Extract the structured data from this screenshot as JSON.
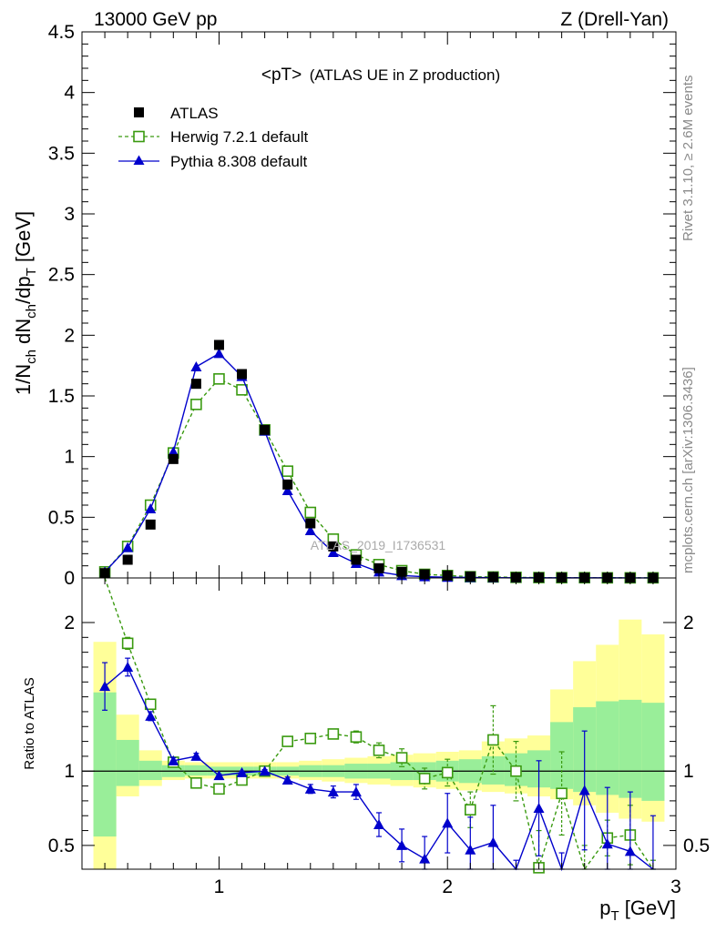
{
  "header": {
    "left": "13000 GeV pp",
    "right": "Z (Drell-Yan)"
  },
  "side_text": {
    "top": "Rivet 3.1.10, ≥ 2.6M events",
    "bottom": "mcplots.cern.ch [arXiv:1306.3436]"
  },
  "chart_data": [
    {
      "type": "line",
      "title": "<pT>",
      "subtitle": "(ATLAS UE in Z production)",
      "watermark": "ATLAS_2019_I1736531",
      "ylabel_parts": [
        "1/N",
        "ch",
        " dN",
        "ch",
        "/dp",
        "T",
        " [GeV]"
      ],
      "xlim": [
        0.4,
        3.0
      ],
      "ylim": [
        0,
        4.5
      ],
      "yticks": [
        "0",
        "0.5",
        "1",
        "1.5",
        "2",
        "2.5",
        "3",
        "3.5",
        "4",
        "4.5"
      ],
      "x": [
        0.5,
        0.6,
        0.7,
        0.8,
        0.9,
        1.0,
        1.1,
        1.2,
        1.3,
        1.4,
        1.5,
        1.6,
        1.7,
        1.8,
        1.9,
        2.0,
        2.1,
        2.2,
        2.3,
        2.4,
        2.5,
        2.6,
        2.7,
        2.8,
        2.9
      ],
      "series": [
        {
          "name": "ATLAS",
          "color": "#000000",
          "marker": "filled-square",
          "values": [
            0.04,
            0.15,
            0.44,
            0.98,
            1.6,
            1.92,
            1.68,
            1.22,
            0.77,
            0.45,
            0.26,
            0.15,
            0.08,
            0.05,
            0.03,
            0.02,
            0.012,
            0.008,
            0.005,
            0.004,
            0.003,
            0.002,
            0.002,
            0.001,
            0.001
          ]
        },
        {
          "name": "Herwig 7.2.1 default",
          "color": "#3a9a10",
          "marker": "open-square",
          "line": "dashed",
          "values": [
            0.05,
            0.26,
            0.6,
            1.03,
            1.43,
            1.64,
            1.55,
            1.22,
            0.88,
            0.54,
            0.32,
            0.19,
            0.11,
            0.06,
            0.03,
            0.02,
            0.01,
            0.008,
            0.005,
            0.003,
            0.002,
            0.002,
            0.001,
            0.001,
            0.001
          ]
        },
        {
          "name": "Pythia 8.308 default",
          "color": "#0000cc",
          "marker": "filled-triangle",
          "line": "solid",
          "values": [
            0.05,
            0.25,
            0.57,
            1.04,
            1.74,
            1.85,
            1.66,
            1.21,
            0.72,
            0.39,
            0.21,
            0.12,
            0.05,
            0.02,
            0.01,
            0.006,
            0.004,
            0.002,
            0.001,
            0.001,
            0.001,
            0.001,
            0.001,
            0.0005,
            0.0005
          ]
        }
      ]
    },
    {
      "type": "line",
      "ylabel": "Ratio to ATLAS",
      "xlabel_parts": [
        "p",
        "T",
        " [GeV]"
      ],
      "xlim": [
        0.4,
        3.0
      ],
      "ylim": [
        0.34,
        2.3
      ],
      "xticks": [
        "1",
        "2",
        "3"
      ],
      "yticks": [
        "0.5",
        "1",
        "2"
      ],
      "reference_line": 1,
      "x": [
        0.5,
        0.6,
        0.7,
        0.8,
        0.9,
        1.0,
        1.1,
        1.2,
        1.3,
        1.4,
        1.5,
        1.6,
        1.7,
        1.8,
        1.9,
        2.0,
        2.1,
        2.2,
        2.3,
        2.4,
        2.5,
        2.6,
        2.7,
        2.8,
        2.9
      ],
      "bands": [
        {
          "color": "#ffff99",
          "lower": [
            0.3,
            0.83,
            0.9,
            0.94,
            0.95,
            0.95,
            0.95,
            0.95,
            0.95,
            0.94,
            0.93,
            0.92,
            0.91,
            0.9,
            0.89,
            0.88,
            0.87,
            0.86,
            0.85,
            0.83,
            0.81,
            0.77,
            0.72,
            0.68,
            0.66
          ],
          "upper": [
            1.87,
            1.38,
            1.14,
            1.07,
            1.06,
            1.06,
            1.06,
            1.06,
            1.06,
            1.07,
            1.08,
            1.09,
            1.1,
            1.11,
            1.12,
            1.13,
            1.14,
            1.2,
            1.22,
            1.24,
            1.55,
            1.74,
            1.85,
            2.02,
            1.92
          ]
        },
        {
          "color": "#99ee99",
          "lower": [
            0.56,
            0.9,
            0.94,
            0.96,
            0.97,
            0.97,
            0.97,
            0.97,
            0.97,
            0.96,
            0.96,
            0.95,
            0.95,
            0.94,
            0.94,
            0.93,
            0.92,
            0.91,
            0.9,
            0.89,
            0.88,
            0.86,
            0.84,
            0.82,
            0.8
          ],
          "upper": [
            1.53,
            1.21,
            1.07,
            1.04,
            1.04,
            1.03,
            1.03,
            1.03,
            1.03,
            1.04,
            1.04,
            1.05,
            1.05,
            1.06,
            1.06,
            1.07,
            1.08,
            1.1,
            1.12,
            1.14,
            1.33,
            1.43,
            1.47,
            1.48,
            1.46
          ]
        }
      ],
      "series": [
        {
          "name": "Herwig 7.2.1 default",
          "color": "#3a9a10",
          "marker": "open-square",
          "line": "dashed",
          "values": [
            2.5,
            1.86,
            1.45,
            1.06,
            0.92,
            0.88,
            0.94,
            1.0,
            1.2,
            1.22,
            1.25,
            1.23,
            1.14,
            1.09,
            0.95,
            0.99,
            0.74,
            1.21,
            1.0,
            0.35,
            0.85,
            0.1,
            0.55,
            0.57,
            0.1
          ],
          "err": [
            0,
            0.04,
            0.03,
            0.02,
            0.02,
            0.01,
            0.01,
            0.01,
            0.02,
            0.02,
            0.03,
            0.04,
            0.05,
            0.06,
            0.07,
            0.09,
            0.12,
            0.23,
            0.2,
            0.25,
            0.28,
            0.4,
            0.12,
            0.2,
            0.3
          ]
        },
        {
          "name": "Pythia 8.308 default",
          "color": "#0000cc",
          "marker": "filled-triangle",
          "line": "solid",
          "values": [
            1.57,
            1.7,
            1.37,
            1.07,
            1.1,
            0.97,
            0.99,
            1.0,
            0.94,
            0.88,
            0.86,
            0.86,
            0.64,
            0.5,
            0.41,
            0.65,
            0.47,
            0.52,
            0.1,
            0.75,
            0.1,
            0.87,
            0.51,
            0.46,
            0.3
          ],
          "err": [
            0.16,
            0.06,
            0.03,
            0.02,
            0.02,
            0.01,
            0.01,
            0.01,
            0.02,
            0.03,
            0.04,
            0.05,
            0.08,
            0.11,
            0.15,
            0.2,
            0.22,
            0.25,
            0.3,
            0.32,
            0.35,
            0.4,
            0.38,
            0.4,
            0.4
          ]
        }
      ]
    }
  ]
}
